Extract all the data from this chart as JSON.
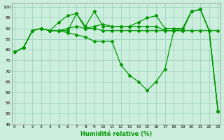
{
  "xlabel": "Humidité relative (%)",
  "bg_color": "#cceedd",
  "grid_color": "#99ccbb",
  "line_color": "#009900",
  "ylim": [
    45,
    102
  ],
  "xlim": [
    -0.3,
    23.3
  ],
  "yticks": [
    45,
    50,
    55,
    60,
    65,
    70,
    75,
    80,
    85,
    90,
    95,
    100
  ],
  "xticks": [
    0,
    1,
    2,
    3,
    4,
    5,
    6,
    7,
    8,
    9,
    10,
    11,
    12,
    13,
    14,
    15,
    16,
    17,
    18,
    19,
    20,
    21,
    22,
    23
  ],
  "lines": [
    [
      79,
      81,
      89,
      90,
      89,
      93,
      96,
      97,
      90,
      91,
      92,
      91,
      91,
      91,
      93,
      95,
      96,
      90,
      90,
      90,
      98,
      99,
      89,
      51
    ],
    [
      79,
      81,
      89,
      90,
      89,
      89,
      89,
      97,
      91,
      98,
      91,
      91,
      91,
      91,
      91,
      91,
      91,
      89,
      89,
      89,
      98,
      99,
      89,
      51
    ],
    [
      79,
      81,
      89,
      90,
      89,
      89,
      88,
      87,
      86,
      84,
      84,
      84,
      73,
      68,
      65,
      61,
      65,
      71,
      89,
      90,
      98,
      99,
      89,
      51
    ],
    [
      79,
      81,
      89,
      90,
      89,
      89,
      90,
      91,
      90,
      90,
      89,
      89,
      89,
      89,
      89,
      89,
      89,
      89,
      89,
      89,
      89,
      89,
      89,
      89
    ]
  ]
}
